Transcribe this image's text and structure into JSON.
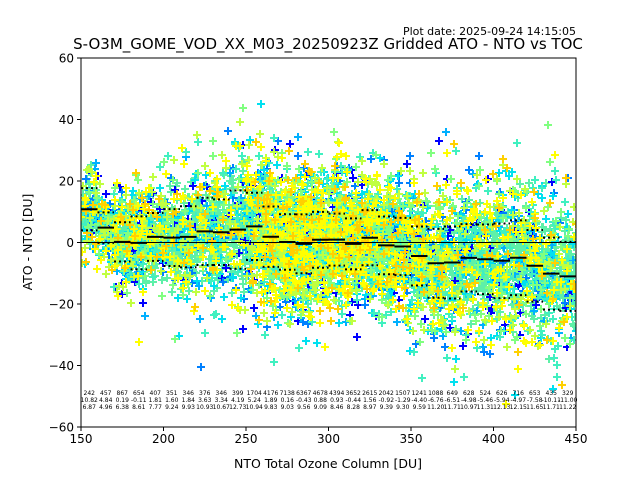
{
  "plot_date": "Plot date: 2025-09-24 14:15:05",
  "chart_data": {
    "type": "scatter",
    "title": "S-O3M_GOME_VOD_XX_M03_20250923Z Gridded ATO - NTO vs TOC",
    "xlabel": "NTO Total Ozone Column [DU]",
    "ylabel": "ATO - NTO [DU]",
    "xlim": [
      150,
      450
    ],
    "ylim": [
      -60,
      60
    ],
    "xticks": [
      "150",
      "200",
      "250",
      "300",
      "350",
      "400",
      "450"
    ],
    "yticks": [
      "60",
      "40",
      "20",
      "0",
      "−20",
      "−40",
      "−60"
    ],
    "grid": false,
    "marker": "plus",
    "colormap": [
      "#0000ff",
      "#0080ff",
      "#00b0ff",
      "#00e0f0",
      "#40f0c0",
      "#80ff80",
      "#c0ff40",
      "#ffff00",
      "#ffd000"
    ],
    "bins": {
      "x_start": [
        150,
        160,
        170,
        180,
        190,
        200,
        210,
        220,
        230,
        240,
        250,
        260,
        270,
        280,
        290,
        300,
        310,
        320,
        330,
        340,
        350,
        360,
        370,
        380,
        390,
        400,
        410,
        420,
        430,
        440
      ],
      "bin_width": 10,
      "count_labels": [
        "242",
        "457",
        "867",
        "654",
        "407",
        "351",
        "346",
        "376",
        "346",
        "399",
        "1704",
        "4176",
        "7138",
        "6367",
        "4678",
        "4394",
        "3652",
        "2615",
        "2042",
        "1507",
        "1241",
        "1088",
        "649",
        "628",
        "524",
        "626",
        "716",
        "653",
        "435",
        "329"
      ],
      "mean_labels": [
        "10.82",
        "4.84",
        "0.19",
        "-0.11",
        "1.81",
        "1.60",
        "1.84",
        "3.63",
        "3.34",
        "4.19",
        "5.24",
        "1.89",
        "0.16",
        "-0.43",
        "0.88",
        "0.93",
        "-0.44",
        "1.56",
        "-0.92",
        "-1.29",
        "-4.40",
        "-6.76",
        "-6.51",
        "-4.98",
        "-5.46",
        "-5.94",
        "-4.97",
        "-7.58",
        "-10.11",
        "-11.00"
      ],
      "std_labels": [
        "6.87",
        "4.96",
        "6.38",
        "8.61",
        "7.77",
        "9.24",
        "9.93",
        "10.93",
        "10.67",
        "12.73",
        "10.94",
        "9.83",
        "9.03",
        "9.56",
        "9.09",
        "8.46",
        "8.28",
        "8.97",
        "9.39",
        "9.30",
        "9.59",
        "11.20",
        "11.71",
        "10.97",
        "11.31",
        "12.13",
        "12.15",
        "11.65",
        "11.71",
        "11.22"
      ]
    },
    "zero_line": 0
  }
}
